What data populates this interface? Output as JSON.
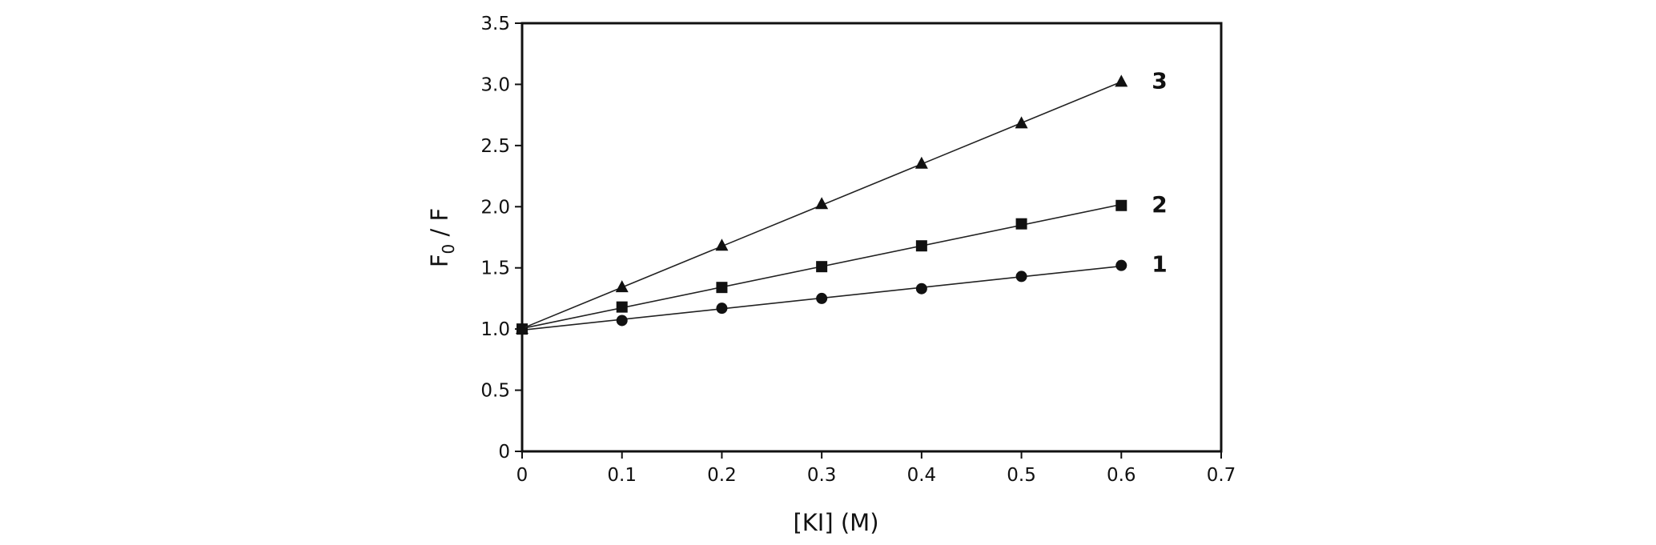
{
  "chart_data": {
    "type": "scatter",
    "title": "",
    "xlabel": "[KI] (M)",
    "ylabel": {
      "main": "F",
      "sub": "0",
      "rest": " / F"
    },
    "xlim": [
      0,
      0.7
    ],
    "ylim": [
      0,
      3.5
    ],
    "x_ticks": [
      0,
      0.1,
      0.2,
      0.3,
      0.4,
      0.5,
      0.6,
      0.7
    ],
    "x_tick_labels": [
      "0",
      "0.1",
      "0.2",
      "0.3",
      "0.4",
      "0.5",
      "0.6",
      "0.7"
    ],
    "y_ticks": [
      0,
      0.5,
      1.0,
      1.5,
      2.0,
      2.5,
      3.0,
      3.5
    ],
    "y_tick_labels": [
      "0",
      "0.5",
      "1.0",
      "1.5",
      "2.0",
      "2.5",
      "3.0",
      "3.5"
    ],
    "grid": false,
    "fit_lines": true,
    "series": [
      {
        "label": "1",
        "marker": "circle",
        "x": [
          0,
          0.1,
          0.2,
          0.3,
          0.4,
          0.5,
          0.6
        ],
        "y": [
          1.0,
          1.07,
          1.17,
          1.25,
          1.33,
          1.43,
          1.52
        ]
      },
      {
        "label": "2",
        "marker": "square",
        "x": [
          0,
          0.1,
          0.2,
          0.3,
          0.4,
          0.5,
          0.6
        ],
        "y": [
          1.0,
          1.18,
          1.34,
          1.51,
          1.68,
          1.86,
          2.01
        ]
      },
      {
        "label": "3",
        "marker": "triangle",
        "x": [
          0,
          0.1,
          0.2,
          0.3,
          0.4,
          0.5,
          0.6
        ],
        "y": [
          1.0,
          1.34,
          1.68,
          2.02,
          2.35,
          2.68,
          3.02
        ]
      }
    ]
  }
}
